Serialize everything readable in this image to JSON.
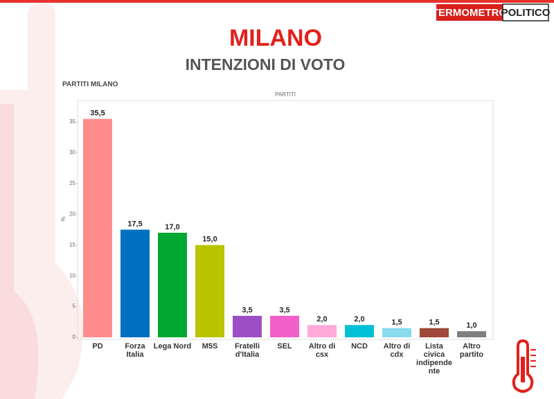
{
  "logo": {
    "left": "TERMOMETRO",
    "right": "POLITICO"
  },
  "chart_data": {
    "type": "bar",
    "title": "MILANO",
    "subtitle": "INTENZIONI DI VOTO",
    "panel_title": "PARTITI MILANO",
    "column_header": "PARTITI",
    "y_label": "%",
    "categories": [
      "PD",
      "Forza Italia",
      "Lega Nord",
      "M5S",
      "Fratelli d'Italia",
      "SEL",
      "Altro di csx",
      "NCD",
      "Altro di cdx",
      "Lista civica indipendente",
      "Altro partito"
    ],
    "values": [
      35.5,
      17.5,
      17.0,
      15.0,
      3.5,
      3.5,
      2.0,
      2.0,
      1.5,
      1.5,
      1.0
    ],
    "value_labels": [
      "35,5",
      "17,5",
      "17,0",
      "15,0",
      "3,5",
      "3,5",
      "2,0",
      "2,0",
      "1,5",
      "1,5",
      "1,0"
    ],
    "colors": [
      "#ff8c8c",
      "#0070c0",
      "#00a832",
      "#b8c400",
      "#9c4fc4",
      "#f25fc8",
      "#ffaad8",
      "#00c0d8",
      "#88dced",
      "#a0483a",
      "#7f7f7f"
    ],
    "ylim": [
      0,
      38.5
    ],
    "yticks": [
      0,
      5,
      10,
      15,
      20,
      25,
      30,
      35
    ]
  }
}
